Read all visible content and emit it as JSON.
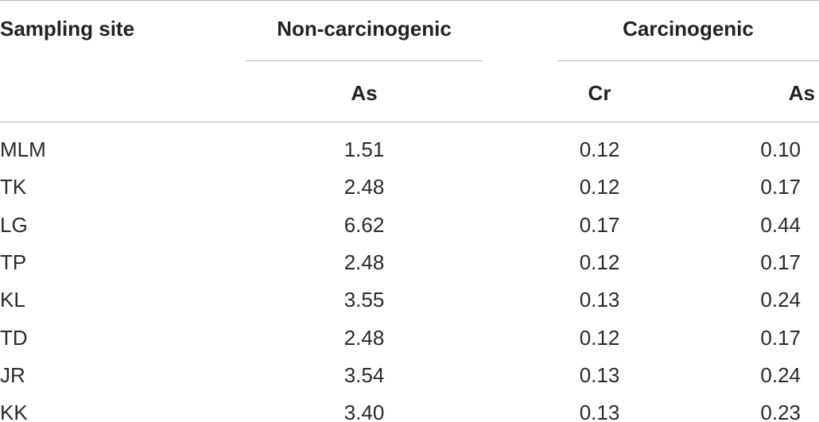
{
  "table": {
    "headers": {
      "site": "Sampling site",
      "non_carcinogenic": "Non-carcinogenic",
      "carcinogenic": "Carcinogenic",
      "nc_as": "As",
      "c_cr": "Cr",
      "c_as": "As"
    },
    "rows": [
      {
        "site": "MLM",
        "nc_as": "1.51",
        "c_cr": "0.12",
        "c_as": "0.10"
      },
      {
        "site": "TK",
        "nc_as": "2.48",
        "c_cr": "0.12",
        "c_as": "0.17"
      },
      {
        "site": "LG",
        "nc_as": "6.62",
        "c_cr": "0.17",
        "c_as": "0.44"
      },
      {
        "site": "TP",
        "nc_as": "2.48",
        "c_cr": "0.12",
        "c_as": "0.17"
      },
      {
        "site": "KL",
        "nc_as": "3.55",
        "c_cr": "0.13",
        "c_as": "0.24"
      },
      {
        "site": "TD",
        "nc_as": "2.48",
        "c_cr": "0.12",
        "c_as": "0.17"
      },
      {
        "site": "JR",
        "nc_as": "3.54",
        "c_cr": "0.13",
        "c_as": "0.24"
      },
      {
        "site": "KK",
        "nc_as": "3.40",
        "c_cr": "0.13",
        "c_as": "0.23"
      }
    ]
  }
}
